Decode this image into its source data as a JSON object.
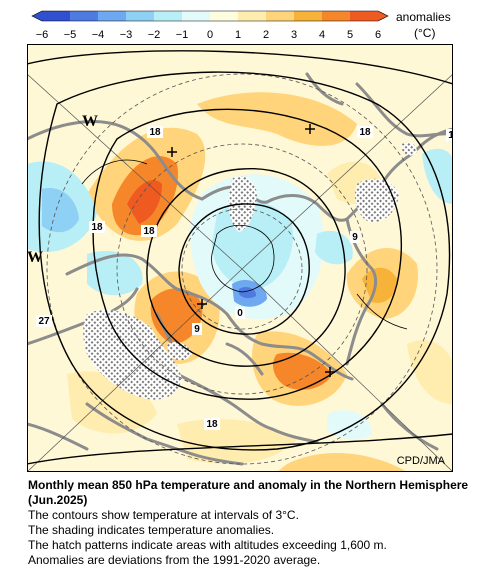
{
  "legend": {
    "label": "anomalies",
    "unit": "(°C)",
    "ticks": [
      "−6",
      "−5",
      "−4",
      "−3",
      "−2",
      "−1",
      "0",
      "1",
      "2",
      "3",
      "4",
      "5",
      "6"
    ],
    "colors": [
      "#3050d0",
      "#4f7ae0",
      "#6ea8f0",
      "#8fd0f5",
      "#b8eef6",
      "#e2fafa",
      "#fffde0",
      "#ffedb0",
      "#ffd47a",
      "#f7b23a",
      "#f5872a",
      "#ee5a20"
    ]
  },
  "map": {
    "credit": "CPD/JMA",
    "contour_labels": [
      "18",
      "18",
      "18",
      "18",
      "9",
      "9",
      "0",
      "27",
      "18",
      "1"
    ],
    "letters": [
      "W",
      "W"
    ],
    "colors": {
      "land_outline": "#8c8c8c",
      "contour": "#000000",
      "hatch": "#7a7a7a"
    }
  },
  "caption": {
    "title": "Monthly mean 850 hPa temperature and anomaly in the Northern Hemisphere (Jun.2025)",
    "lines": [
      "The contours show temperature at intervals of 3°C.",
      "The shading indicates temperature anomalies.",
      "The hatch patterns indicate areas with altitudes exceeding 1,600 m.",
      "Anomalies are deviations from the 1991-2020 average."
    ]
  }
}
